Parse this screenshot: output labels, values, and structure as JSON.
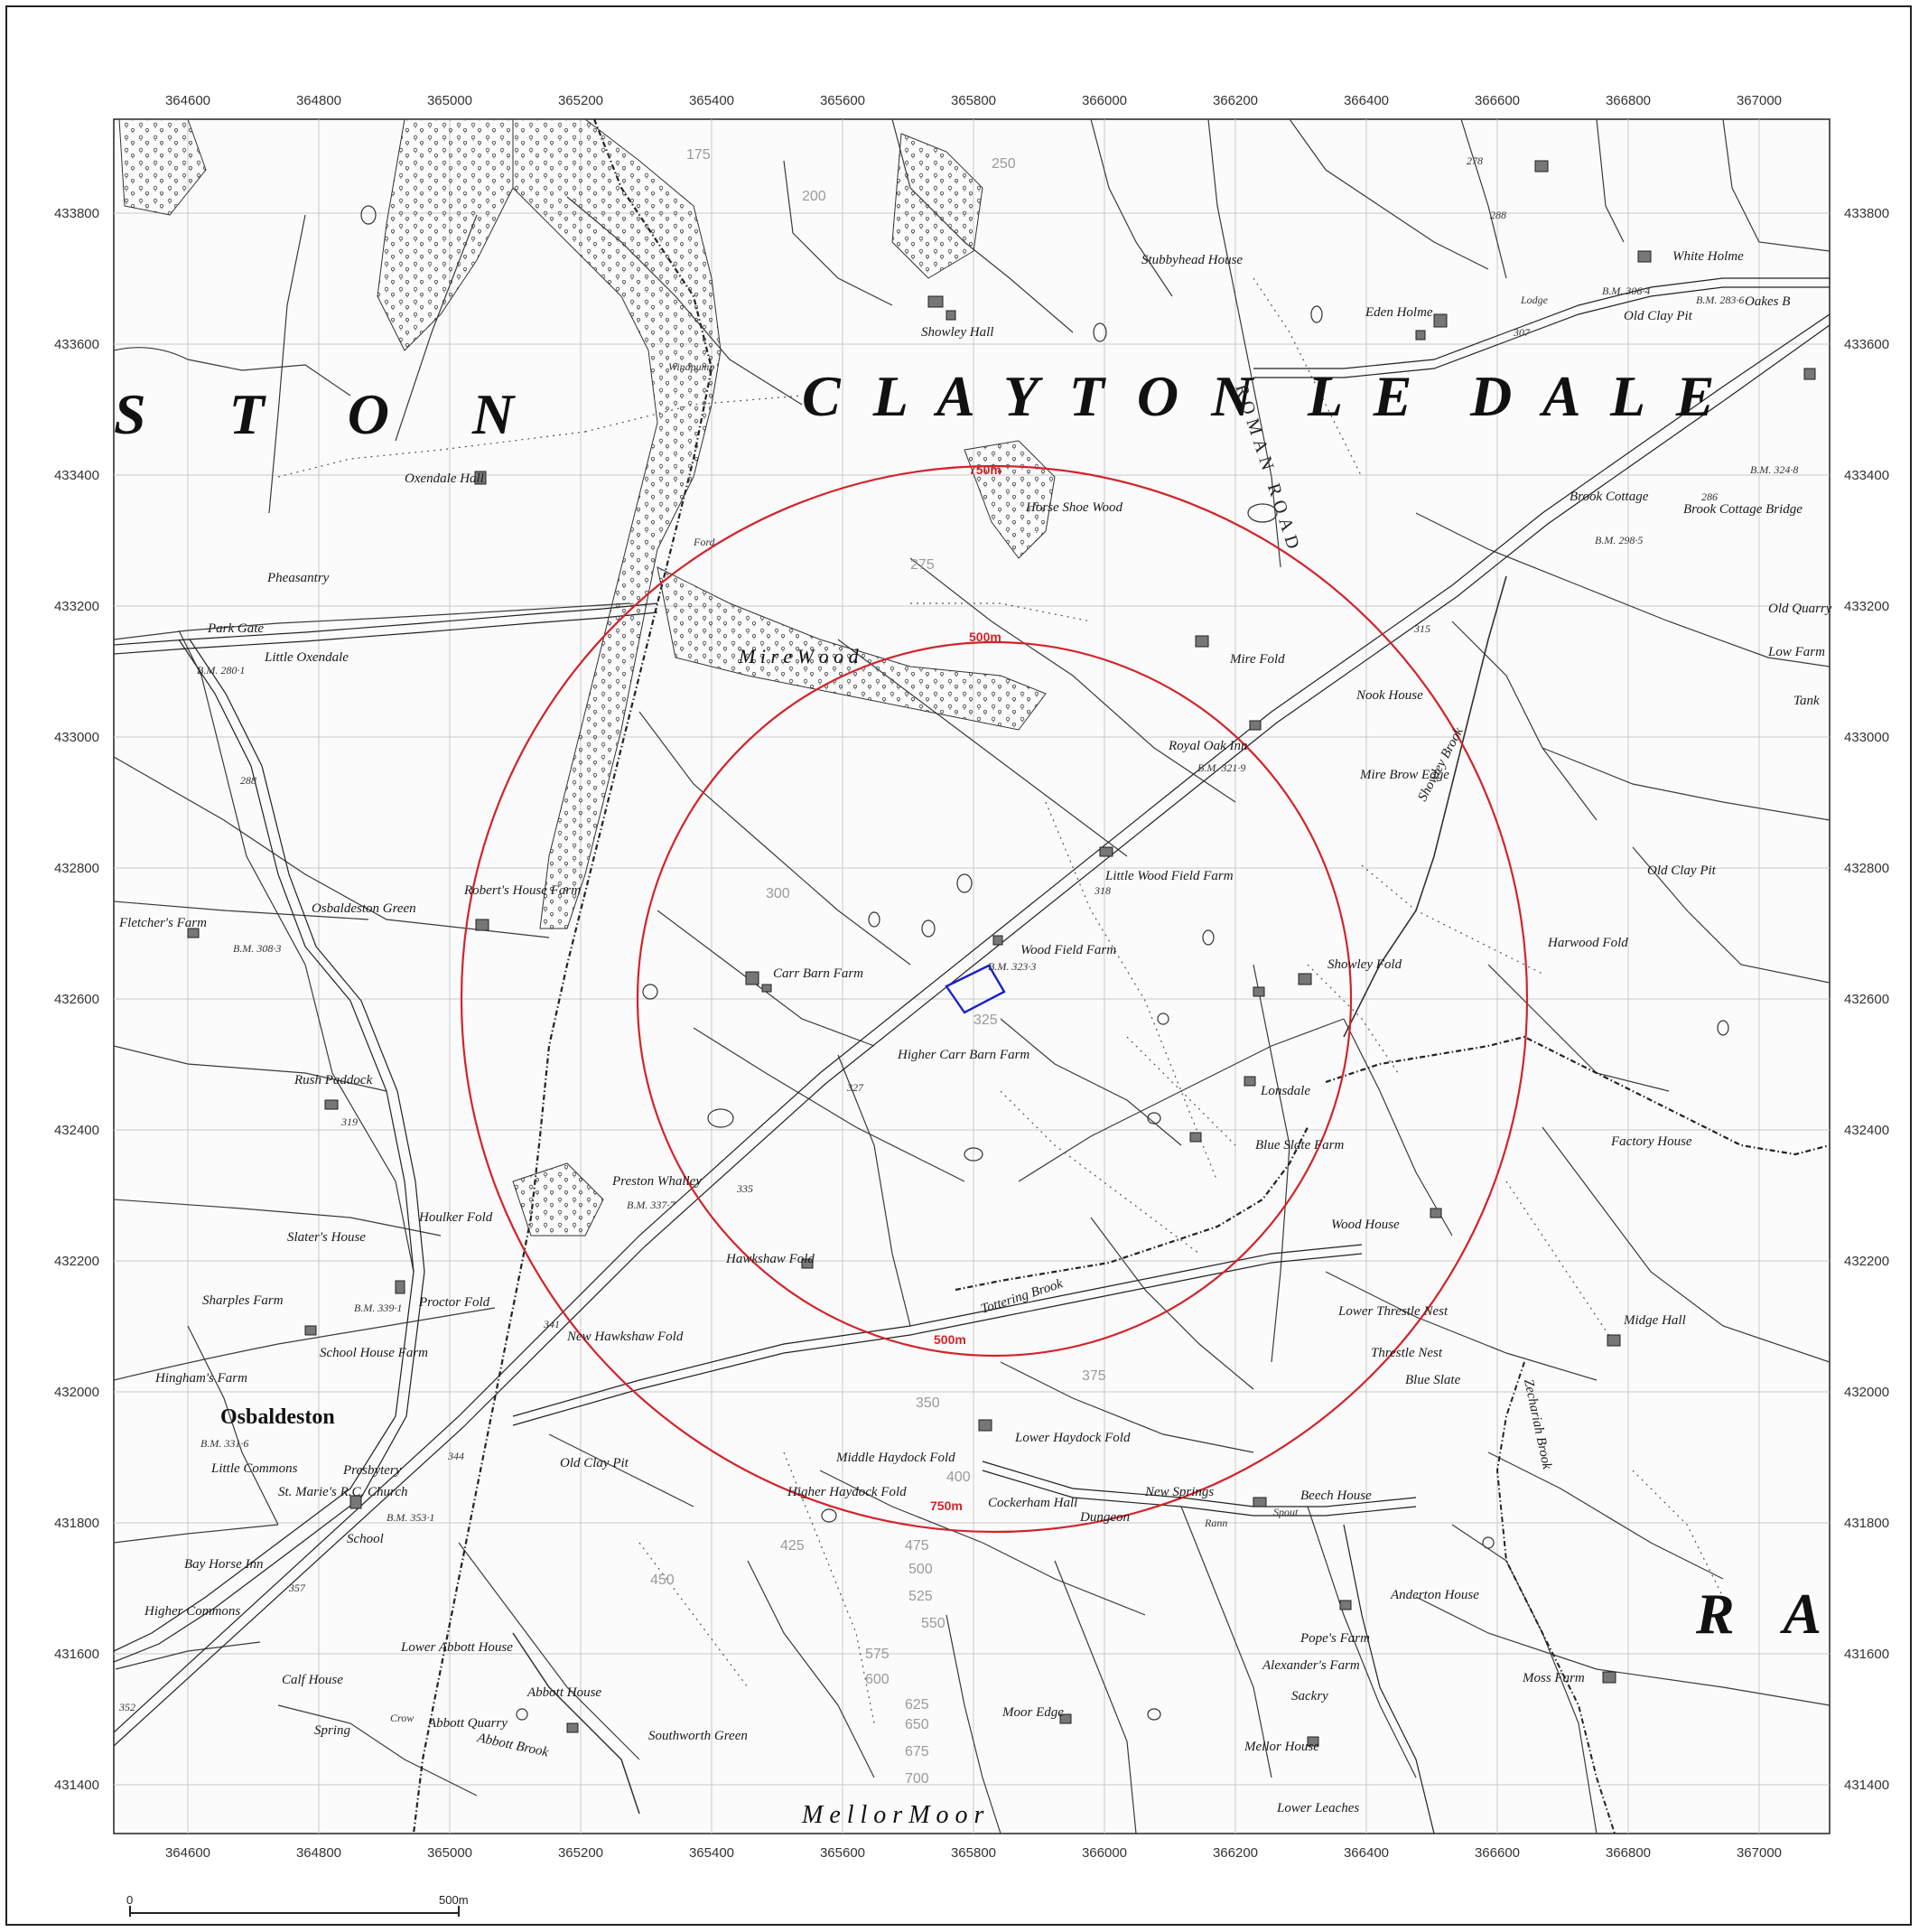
{
  "map": {
    "colors": {
      "buffer": "#d3232a",
      "site": "#1a22c8",
      "grid": "#c8c8c8",
      "ink": "#333333"
    },
    "grid": {
      "eastings": [
        364600,
        364800,
        365000,
        365200,
        365400,
        365600,
        365800,
        366000,
        366200,
        366400,
        366600,
        366800,
        367000
      ],
      "northings": [
        433800,
        433600,
        433400,
        433200,
        433000,
        432800,
        432600,
        432400,
        432200,
        432000,
        431800,
        431600,
        431400
      ],
      "easting_labels": [
        "364600",
        "364800",
        "365000",
        "365200",
        "365400",
        "365600",
        "365800",
        "366000",
        "366200",
        "366400",
        "366600",
        "366800",
        "367000"
      ],
      "northing_labels": [
        "433800",
        "433600",
        "433400",
        "433200",
        "433000",
        "432800",
        "432600",
        "432400",
        "432200",
        "432000",
        "431800",
        "431600",
        "431400"
      ]
    },
    "buffers": {
      "inner_label": "500m",
      "outer_label": "750m"
    },
    "scale_bar": {
      "start_label": "0",
      "end_label": "500m"
    },
    "parish_names": [
      "S T O N",
      "C L A Y T O N",
      "L E",
      "D A L E",
      "R A"
    ],
    "road_label": "ROMAN ROAD",
    "moor_label": "M e l l o r    M o o r",
    "wood_label": "M i r e    W o o d",
    "village_label": "Osbaldeston",
    "places": [
      "Showley Hall",
      "Stubbyhead House",
      "Eden Holme",
      "White Holme",
      "Old Clay Pit",
      "Oakes B",
      "Oxendale Hall",
      "Horse Shoe Wood",
      "Brook Cottage",
      "Brook Cottage Bridge",
      "Pheasantry",
      "Park Gate",
      "Little Oxendale",
      "Mire Fold",
      "Royal Oak Inn",
      "Nook House",
      "Mire Brow Edge",
      "Little Wood Field Farm",
      "Robert's House Farm",
      "Osbaldeston Green",
      "Fletcher's Farm",
      "Wood Field Farm",
      "Carr Barn Farm",
      "Higher Carr Barn Farm",
      "Showley Fold",
      "Harwood Fold",
      "Old Clay Pit",
      "Rush Paddock",
      "Lonsdale",
      "Blue Slate Farm",
      "Factory House",
      "Preston Whalley",
      "Houlker Fold",
      "Slater's House",
      "Wood House",
      "Hawkshaw Fold",
      "Tottering Brook",
      "Proctor Fold",
      "Sharples Farm",
      "School House Farm",
      "New Hawkshaw Fold",
      "Lower Threstle Nest",
      "Threstle Nest",
      "Blue Slate",
      "Midge Hall",
      "Hingham's Farm",
      "Lower Haydock Fold",
      "Middle Haydock Fold",
      "Higher Haydock Fold",
      "Little Commons",
      "St. Marie's R.C. Church",
      "Presbytery",
      "School",
      "Old Clay Pit",
      "New Springs",
      "Dungeon",
      "Beech House",
      "Cockerham Hall",
      "Bay Horse Inn",
      "Anderton House",
      "Higher Commons",
      "Lower Abbott House",
      "Pope's Farm",
      "Alexander's Farm",
      "Moss Farm",
      "Calf House",
      "Abbott House",
      "Abbott Quarry",
      "Moor Edge",
      "Sackry",
      "Spring",
      "Southworth Green",
      "Mellor House",
      "Lower Leaches",
      "Old Quarry",
      "Low Farm",
      "Tank",
      "Showley Brook",
      "Zechariah Brook",
      "Abbott Brook",
      "Lodge",
      "Windpump",
      "Ford",
      "Spout",
      "Rann",
      "Crow"
    ],
    "benchmarks": [
      "B.M. 306·4",
      "B.M. 283·6",
      "B.M. 324·8",
      "B.M. 298·5",
      "B.M. 280·1",
      "B.M. 321·9",
      "B.M. 308·3",
      "B.M. 323·3",
      "B.M. 337·7",
      "B.M. 339·1",
      "B.M. 331·6",
      "B.M. 353·1"
    ],
    "spot_heights": [
      "278",
      "288",
      "307",
      "286",
      "315",
      "318",
      "327",
      "335",
      "341",
      "344",
      "357",
      "352",
      "319",
      "288"
    ],
    "contours": [
      "175",
      "200",
      "250",
      "275",
      "300",
      "325",
      "350",
      "375",
      "400",
      "425",
      "450",
      "475",
      "500",
      "525",
      "550",
      "575",
      "600",
      "625",
      "650",
      "675",
      "700"
    ]
  }
}
